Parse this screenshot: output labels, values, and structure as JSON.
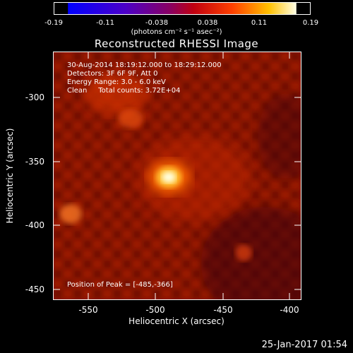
{
  "colorbar": {
    "ticks": [
      "-0.19",
      "-0.11",
      "-0.038",
      "0.038",
      "0.11",
      "0.19"
    ],
    "unit": "(photons cm⁻² s⁻¹ asec⁻²)"
  },
  "title": "Reconstructed RHESSI Image",
  "info": {
    "line1": "30-Aug-2014 18:19:12.000 to 18:29:12.000",
    "line2": "Detectors: 3F 6F 9F, Att 0",
    "line3": "Energy Range: 3.0 - 6.0 keV",
    "line4": "Clean     Total counts: 3.72E+04",
    "peak": "Position of Peak = [-485,-366]"
  },
  "axes": {
    "xlabel": "Heliocentric X (arcsec)",
    "ylabel": "Heliocentric Y (arcsec)",
    "xticks": [
      "-550",
      "-500",
      "-450",
      "-400"
    ],
    "yticks": [
      "-300",
      "-350",
      "-400",
      "-450"
    ],
    "xlim": [
      -575,
      -388
    ],
    "ylim": [
      -455,
      -272
    ]
  },
  "footer": "25-Jan-2017 01:54"
}
